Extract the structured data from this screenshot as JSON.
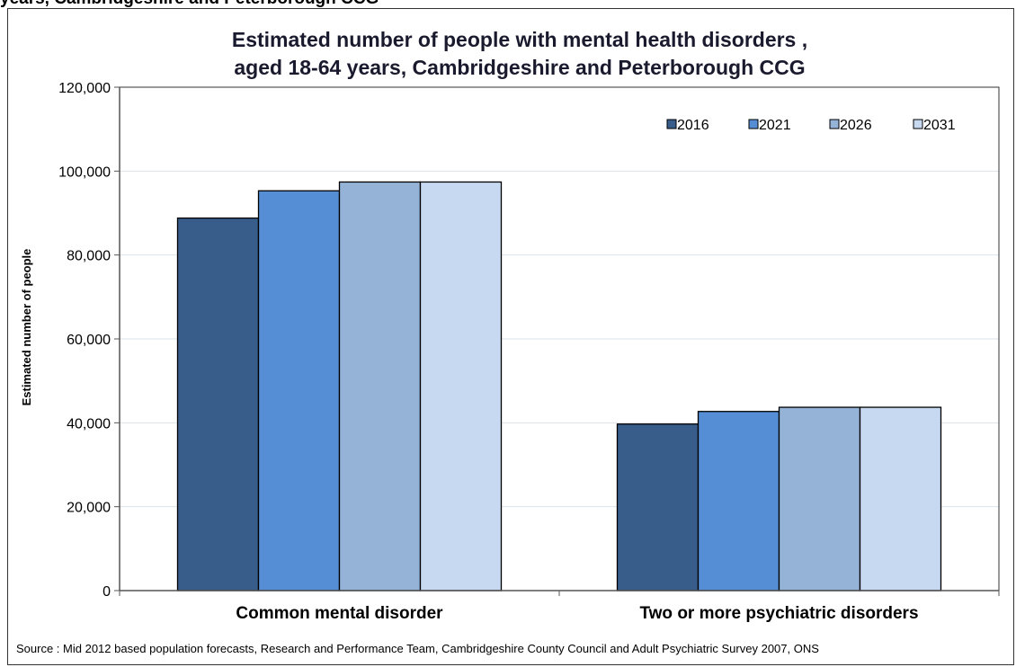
{
  "page": {
    "cut_caption": "years, Cambridgeshire and Peterborough CCG",
    "source": "Source : Mid 2012 based population forecasts, Research and Performance Team, Cambridgeshire County Council and Adult  Psychiatric Survey 2007, ONS"
  },
  "chart_data": {
    "type": "bar",
    "title_line1": "Estimated number of people with mental health disorders ,",
    "title_line2": "aged 18-64 years, Cambridgeshire and Peterborough CCG",
    "ylabel": "Estimated number of people",
    "xlabel": "",
    "ylim": [
      0,
      120000
    ],
    "yticks": [
      0,
      20000,
      40000,
      60000,
      80000,
      100000,
      120000
    ],
    "ytick_labels": [
      "0",
      "20,000",
      "40,000",
      "60,000",
      "80,000",
      "100,000",
      "120,000"
    ],
    "grid": true,
    "legend_position": "top-right",
    "categories": [
      "Common mental disorder",
      "Two or more psychiatric disorders"
    ],
    "series": [
      {
        "name": "2016",
        "color": "#385D8A",
        "values": [
          88800,
          39700
        ]
      },
      {
        "name": "2021",
        "color": "#558ED5",
        "values": [
          95300,
          42700
        ]
      },
      {
        "name": "2026",
        "color": "#95B3D7",
        "values": [
          97400,
          43700
        ]
      },
      {
        "name": "2031",
        "color": "#C6D9F1",
        "values": [
          97400,
          43700
        ]
      }
    ]
  }
}
